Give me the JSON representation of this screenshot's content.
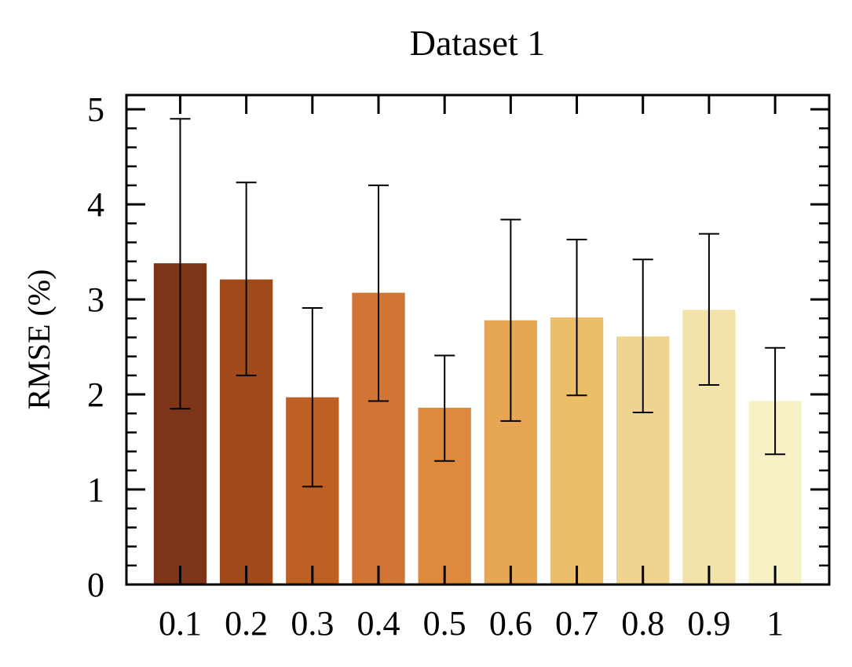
{
  "chart_data": {
    "type": "bar",
    "title": "Dataset 1",
    "xlabel": "",
    "ylabel": "RMSE (%)",
    "categories": [
      "0.1",
      "0.2",
      "0.3",
      "0.4",
      "0.5",
      "0.6",
      "0.7",
      "0.8",
      "0.9",
      "1"
    ],
    "values": [
      3.38,
      3.21,
      1.97,
      3.07,
      1.86,
      2.78,
      2.81,
      2.61,
      2.89,
      1.93
    ],
    "error_low": [
      1.85,
      2.2,
      1.03,
      1.93,
      1.3,
      1.72,
      1.99,
      1.81,
      2.1,
      1.37
    ],
    "error_high": [
      4.9,
      4.23,
      2.91,
      4.2,
      2.41,
      3.84,
      3.63,
      3.42,
      3.69,
      2.49
    ],
    "colors": [
      "#7e3419",
      "#a14a1c",
      "#bd6024",
      "#d07533",
      "#dd8a3f",
      "#e6a654",
      "#ebbe6a",
      "#efd38e",
      "#f3e2aa",
      "#f8f1c5"
    ],
    "ylim": [
      0,
      5.15
    ],
    "yticks": [
      "0",
      "1",
      "2",
      "3",
      "4",
      "5"
    ],
    "grid": false,
    "legend": false,
    "error_bars": true
  }
}
